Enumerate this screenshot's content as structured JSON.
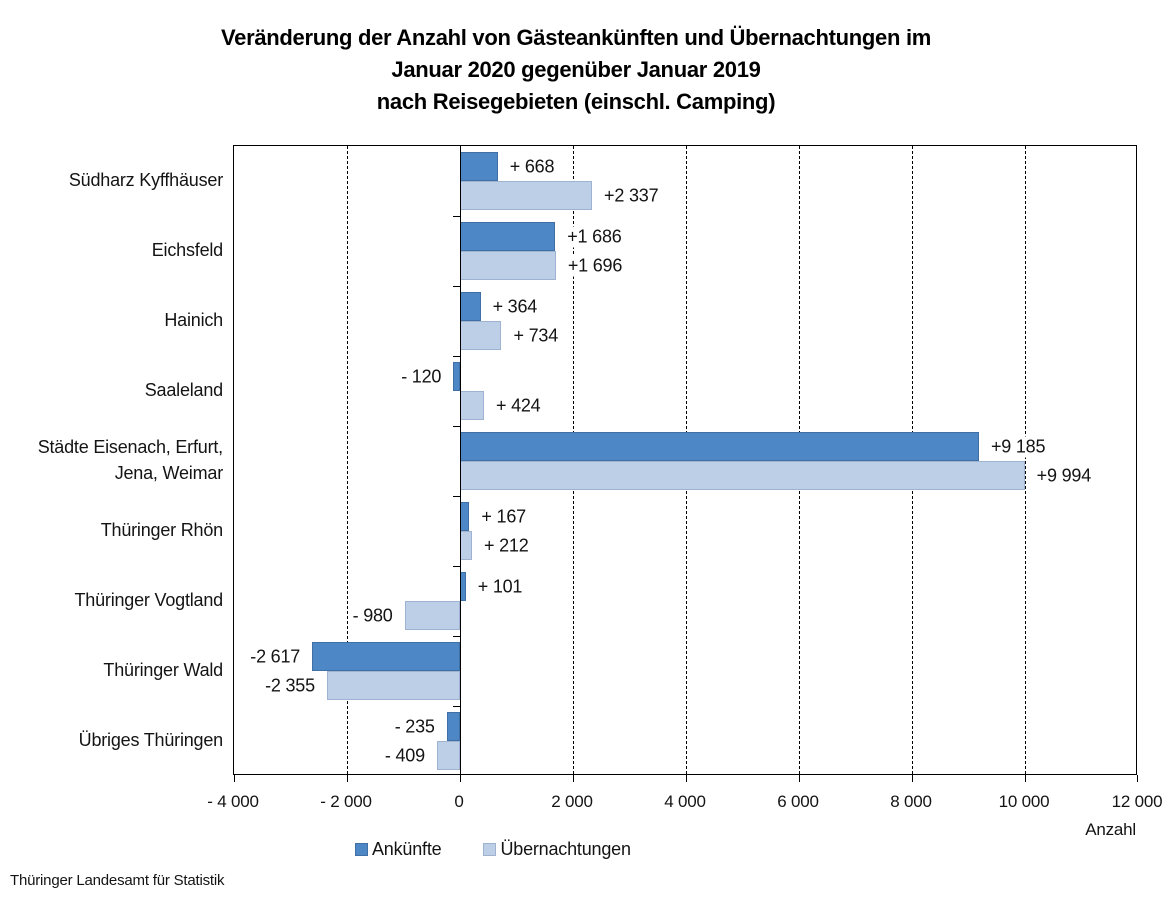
{
  "title": {
    "line1": "Veränderung der Anzahl von Gästeankünften und Übernachtungen im",
    "line2": "Januar 2020 gegenüber Januar 2019",
    "line3": "nach Reisegebieten (einschl. Camping)"
  },
  "footer": "Thüringer Landesamt für Statistik",
  "chart_data": {
    "type": "bar",
    "orientation": "horizontal",
    "title": "Veränderung der Anzahl von Gästeankünften und Übernachtungen im Januar 2020 gegenüber Januar 2019 nach Reisegebieten (einschl. Camping)",
    "categories": [
      "Südharz Kyffhäuser",
      "Eichsfeld",
      "Hainich",
      "Saaleland",
      "Städte Eisenach, Erfurt,\nJena, Weimar",
      "Thüringer Rhön",
      "Thüringer Vogtland",
      "Thüringer Wald",
      "Übriges Thüringen"
    ],
    "series": [
      {
        "name": "Ankünfte",
        "color": "#4e87c6",
        "values": [
          668,
          1686,
          364,
          -120,
          9185,
          167,
          101,
          -2617,
          -235
        ],
        "labels": [
          "+ 668",
          "+1 686",
          "+ 364",
          "- 120",
          "+9 185",
          "+ 167",
          "+ 101",
          "-2 617",
          "- 235"
        ]
      },
      {
        "name": "Übernachtungen",
        "color": "#bdcfe7",
        "values": [
          2337,
          1696,
          734,
          424,
          9994,
          212,
          -980,
          -2355,
          -409
        ],
        "labels": [
          "+2 337",
          "+1 696",
          "+ 734",
          "+ 424",
          "+9 994",
          "+ 212",
          "- 980",
          "-2 355",
          "- 409"
        ]
      }
    ],
    "x_axis": {
      "min": -4000,
      "max": 12000,
      "step": 2000,
      "tick_labels": [
        "- 4 000",
        "- 2 000",
        "0",
        "2 000",
        "4 000",
        "6 000",
        "8 000",
        "10 000",
        "12 000"
      ],
      "unit_label": "Anzahl"
    },
    "grid": "dashed-vertical",
    "legend_position": "bottom"
  }
}
